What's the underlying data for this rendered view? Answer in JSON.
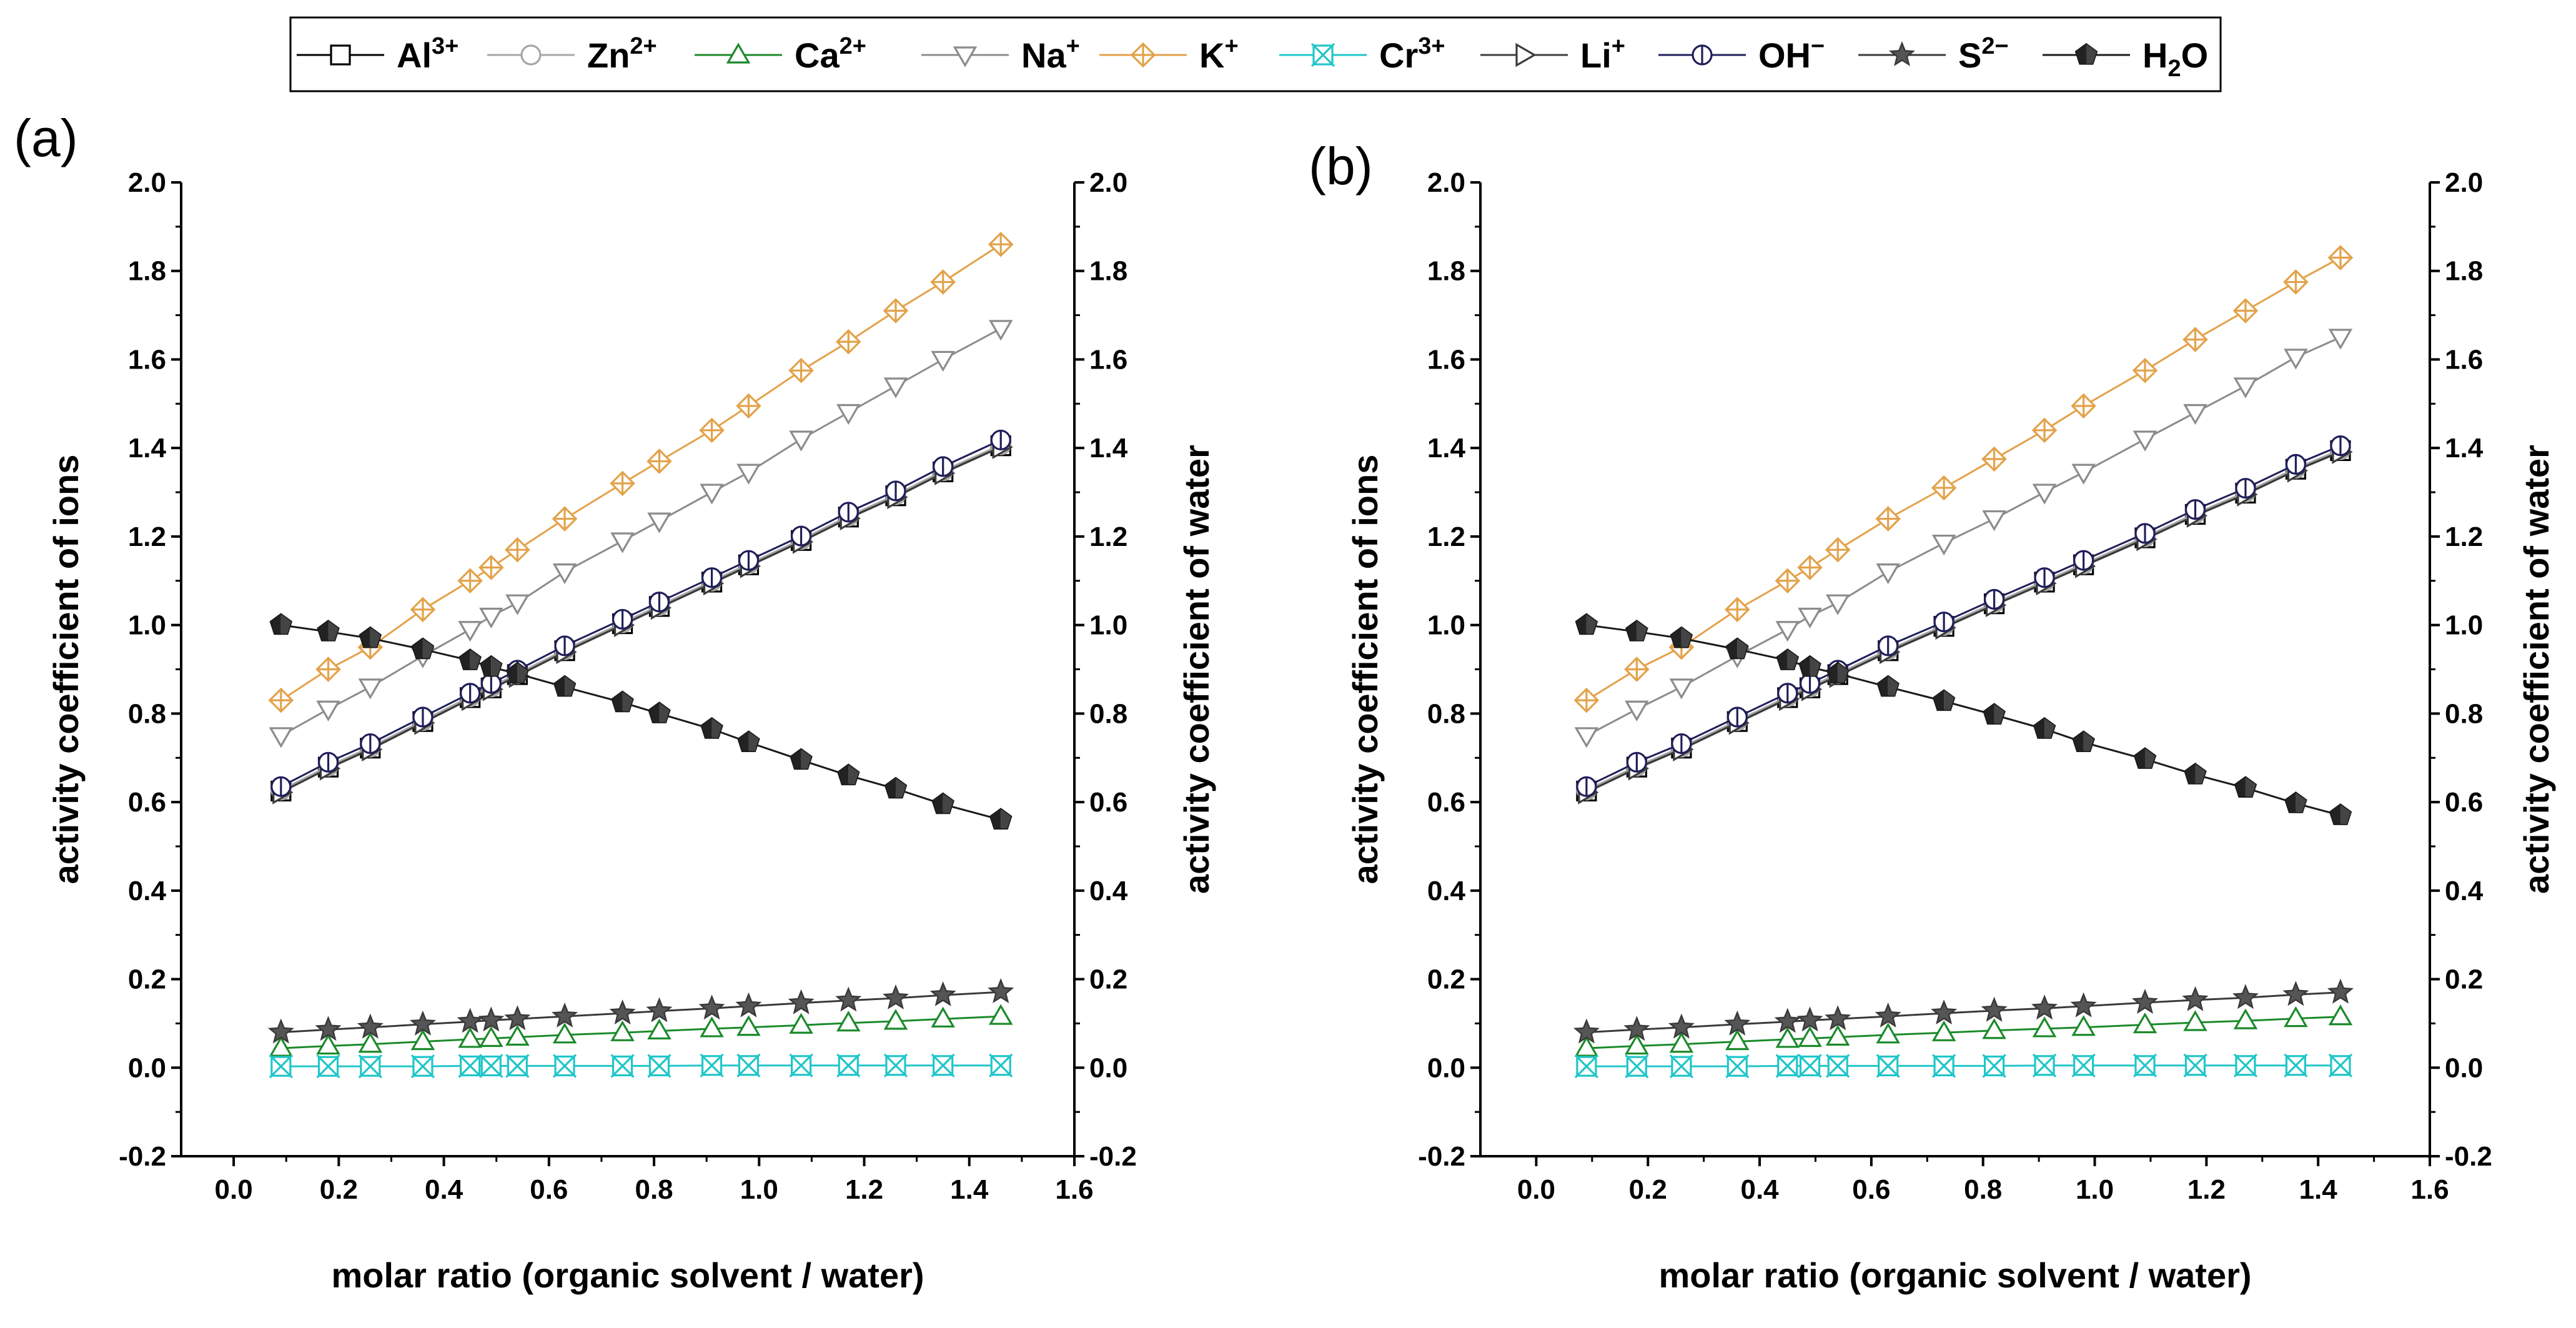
{
  "chart_data": [
    {
      "type": "line",
      "panel_label": "(a)",
      "xlabel": "molar ratio (organic solvent / water)",
      "ylabel": "activity coefficient of ions",
      "ylabel_right": "activity coefficient of water",
      "xlim": [
        -0.1,
        1.6
      ],
      "ylim": [
        -0.2,
        2.0
      ],
      "x_ticks": [
        "0.0",
        "0.2",
        "0.4",
        "0.6",
        "0.8",
        "1.0",
        "1.2",
        "1.4",
        "1.6"
      ],
      "y_ticks": [
        "-0.2",
        "0.0",
        "0.2",
        "0.4",
        "0.6",
        "0.8",
        "1.0",
        "1.2",
        "1.4",
        "1.6",
        "1.8",
        "2.0"
      ],
      "y_ticks_right": [
        "-0.2",
        "0.0",
        "0.2",
        "0.4",
        "0.6",
        "0.8",
        "1.0",
        "1.2",
        "1.4",
        "1.6",
        "1.8",
        "2.0"
      ],
      "x": [
        0.09,
        0.18,
        0.26,
        0.36,
        0.45,
        0.49,
        0.54,
        0.63,
        0.74,
        0.81,
        0.91,
        0.98,
        1.08,
        1.17,
        1.26,
        1.35,
        1.46
      ],
      "series": [
        {
          "name": "Al",
          "charge": "3+",
          "values": [
            0.625,
            0.679,
            0.722,
            0.782,
            0.836,
            0.858,
            0.888,
            0.942,
            1.003,
            1.042,
            1.097,
            1.136,
            1.191,
            1.244,
            1.292,
            1.346,
            1.405
          ]
        },
        {
          "name": "Zn",
          "charge": "2+",
          "values": [
            0.627,
            0.681,
            0.724,
            0.784,
            0.838,
            0.86,
            0.89,
            0.944,
            1.005,
            1.044,
            1.099,
            1.138,
            1.193,
            1.246,
            1.294,
            1.348,
            1.407
          ]
        },
        {
          "name": "Ca",
          "charge": "2+",
          "values": [
            0.044,
            0.049,
            0.053,
            0.059,
            0.064,
            0.066,
            0.069,
            0.074,
            0.079,
            0.083,
            0.088,
            0.091,
            0.096,
            0.101,
            0.105,
            0.11,
            0.116
          ]
        },
        {
          "name": "Na",
          "charge": "+",
          "values": [
            0.75,
            0.81,
            0.86,
            0.93,
            0.99,
            1.02,
            1.05,
            1.12,
            1.19,
            1.235,
            1.3,
            1.345,
            1.42,
            1.48,
            1.54,
            1.6,
            1.67
          ]
        },
        {
          "name": "K",
          "charge": "+",
          "values": [
            0.83,
            0.9,
            0.95,
            1.035,
            1.1,
            1.13,
            1.17,
            1.24,
            1.32,
            1.37,
            1.44,
            1.495,
            1.575,
            1.64,
            1.71,
            1.775,
            1.86
          ]
        },
        {
          "name": "Cr",
          "charge": "3+",
          "values": [
            0.003,
            0.003,
            0.003,
            0.003,
            0.004,
            0.004,
            0.004,
            0.004,
            0.004,
            0.004,
            0.005,
            0.005,
            0.005,
            0.005,
            0.005,
            0.005,
            0.005
          ]
        },
        {
          "name": "Li",
          "charge": "+",
          "values": [
            0.622,
            0.676,
            0.719,
            0.779,
            0.833,
            0.855,
            0.885,
            0.939,
            1.0,
            1.039,
            1.094,
            1.133,
            1.188,
            1.241,
            1.289,
            1.343,
            1.402
          ]
        },
        {
          "name": "OH",
          "charge": "−",
          "values": [
            0.635,
            0.69,
            0.732,
            0.792,
            0.846,
            0.868,
            0.898,
            0.953,
            1.013,
            1.052,
            1.107,
            1.146,
            1.201,
            1.255,
            1.303,
            1.358,
            1.418
          ]
        },
        {
          "name": "S",
          "charge": "2−",
          "values": [
            0.08,
            0.086,
            0.091,
            0.098,
            0.104,
            0.107,
            0.11,
            0.116,
            0.123,
            0.128,
            0.134,
            0.139,
            0.146,
            0.152,
            0.157,
            0.164,
            0.171
          ]
        },
        {
          "name": "H",
          "name_sub": "2",
          "name_tail": "O",
          "values": [
            1.0,
            0.985,
            0.97,
            0.945,
            0.92,
            0.905,
            0.89,
            0.86,
            0.825,
            0.8,
            0.765,
            0.735,
            0.695,
            0.66,
            0.63,
            0.595,
            0.56
          ]
        }
      ]
    },
    {
      "type": "line",
      "panel_label": "(b)",
      "xlabel": "molar ratio (organic solvent / water)",
      "ylabel": "activity coefficient of ions",
      "ylabel_right": "activity coefficient of water",
      "xlim": [
        -0.1,
        1.6
      ],
      "ylim": [
        -0.2,
        2.0
      ],
      "x_ticks": [
        "0.0",
        "0.2",
        "0.4",
        "0.6",
        "0.8",
        "1.0",
        "1.2",
        "1.4",
        "1.6"
      ],
      "y_ticks": [
        "-0.2",
        "0.0",
        "0.2",
        "0.4",
        "0.6",
        "0.8",
        "1.0",
        "1.2",
        "1.4",
        "1.6",
        "1.8",
        "2.0"
      ],
      "y_ticks_right": [
        "-0.2",
        "0.0",
        "0.2",
        "0.4",
        "0.6",
        "0.8",
        "1.0",
        "1.2",
        "1.4",
        "1.6",
        "1.8",
        "2.0"
      ],
      "x": [
        0.09,
        0.18,
        0.26,
        0.36,
        0.45,
        0.49,
        0.54,
        0.63,
        0.73,
        0.82,
        0.91,
        0.98,
        1.09,
        1.18,
        1.27,
        1.36,
        1.44
      ],
      "series": [
        {
          "name": "Al",
          "charge": "3+",
          "values": [
            0.625,
            0.679,
            0.722,
            0.782,
            0.836,
            0.858,
            0.888,
            0.942,
            0.997,
            1.048,
            1.097,
            1.136,
            1.197,
            1.25,
            1.298,
            1.352,
            1.394
          ]
        },
        {
          "name": "Zn",
          "charge": "2+",
          "values": [
            0.627,
            0.681,
            0.724,
            0.784,
            0.838,
            0.86,
            0.89,
            0.944,
            0.999,
            1.05,
            1.099,
            1.138,
            1.199,
            1.252,
            1.3,
            1.354,
            1.396
          ]
        },
        {
          "name": "Ca",
          "charge": "2+",
          "values": [
            0.044,
            0.049,
            0.053,
            0.059,
            0.064,
            0.066,
            0.069,
            0.074,
            0.079,
            0.084,
            0.088,
            0.091,
            0.097,
            0.102,
            0.106,
            0.111,
            0.115
          ]
        },
        {
          "name": "Na",
          "charge": "+",
          "values": [
            0.75,
            0.81,
            0.86,
            0.93,
            0.99,
            1.02,
            1.05,
            1.12,
            1.185,
            1.24,
            1.3,
            1.345,
            1.42,
            1.48,
            1.54,
            1.605,
            1.65
          ]
        },
        {
          "name": "K",
          "charge": "+",
          "values": [
            0.83,
            0.9,
            0.95,
            1.035,
            1.1,
            1.13,
            1.17,
            1.24,
            1.31,
            1.375,
            1.44,
            1.495,
            1.575,
            1.645,
            1.71,
            1.775,
            1.83
          ]
        },
        {
          "name": "Cr",
          "charge": "3+",
          "values": [
            0.003,
            0.003,
            0.003,
            0.003,
            0.004,
            0.004,
            0.004,
            0.004,
            0.004,
            0.004,
            0.005,
            0.005,
            0.005,
            0.005,
            0.005,
            0.005,
            0.005
          ]
        },
        {
          "name": "Li",
          "charge": "+",
          "values": [
            0.622,
            0.676,
            0.719,
            0.779,
            0.833,
            0.855,
            0.885,
            0.939,
            0.994,
            1.045,
            1.094,
            1.133,
            1.194,
            1.247,
            1.295,
            1.349,
            1.391
          ]
        },
        {
          "name": "OH",
          "charge": "−",
          "values": [
            0.635,
            0.69,
            0.732,
            0.792,
            0.846,
            0.868,
            0.898,
            0.953,
            1.007,
            1.058,
            1.107,
            1.146,
            1.207,
            1.261,
            1.309,
            1.363,
            1.405
          ]
        },
        {
          "name": "S",
          "charge": "2−",
          "values": [
            0.08,
            0.086,
            0.091,
            0.098,
            0.104,
            0.107,
            0.11,
            0.116,
            0.123,
            0.129,
            0.134,
            0.139,
            0.147,
            0.153,
            0.158,
            0.165,
            0.17
          ]
        },
        {
          "name": "H",
          "name_sub": "2",
          "name_tail": "O",
          "values": [
            1.0,
            0.985,
            0.97,
            0.945,
            0.92,
            0.905,
            0.89,
            0.86,
            0.828,
            0.797,
            0.765,
            0.735,
            0.697,
            0.662,
            0.632,
            0.597,
            0.57
          ]
        }
      ]
    }
  ],
  "series_styles": [
    {
      "key": "Al",
      "color": "#000000",
      "marker": "square",
      "fill": "#ffffff"
    },
    {
      "key": "Zn",
      "color": "#a6a6a6",
      "marker": "circle",
      "fill": "#ffffff"
    },
    {
      "key": "Ca",
      "color": "#1b8a2a",
      "marker": "triangle-up",
      "fill": "#ffffff"
    },
    {
      "key": "Na",
      "color": "#8c8c8c",
      "marker": "triangle-down",
      "fill": "#ffffff"
    },
    {
      "key": "K",
      "color": "#e3a24a",
      "marker": "diamond-cross",
      "fill": "#ffffff"
    },
    {
      "key": "Cr",
      "color": "#20c6c9",
      "marker": "square-x",
      "fill": "#ffffff"
    },
    {
      "key": "Li",
      "color": "#3c3c3c",
      "marker": "triangle-right",
      "fill": "#ffffff"
    },
    {
      "key": "OH",
      "color": "#1f1f5a",
      "marker": "circle-bar",
      "fill": "#ffffff"
    },
    {
      "key": "S",
      "color": "#3a3a3a",
      "marker": "star",
      "fill": "#555555"
    },
    {
      "key": "H2O",
      "color": "#1a1a1a",
      "marker": "pentagon-half",
      "fill": "#444444"
    }
  ]
}
